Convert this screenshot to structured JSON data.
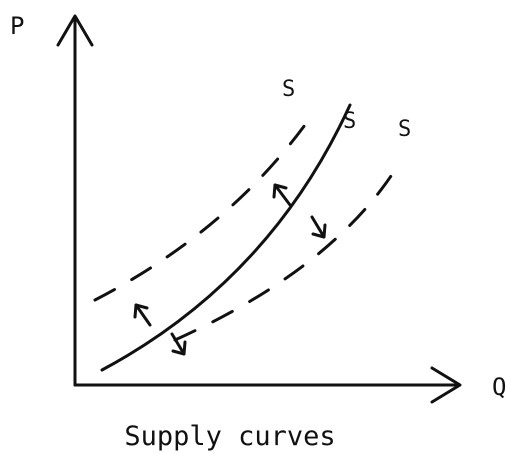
{
  "axes": {
    "y_label": "P",
    "x_label": "Q"
  },
  "curves": [
    {
      "label": "S"
    },
    {
      "label": "S"
    },
    {
      "label": "S"
    }
  ],
  "caption": "Supply curves"
}
